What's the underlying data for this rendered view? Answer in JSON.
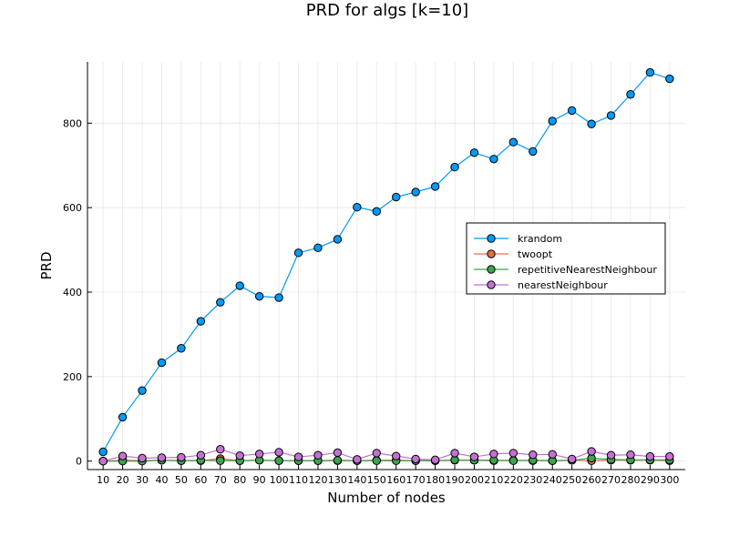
{
  "chart_data": {
    "type": "line",
    "title": "PRD for algs [k=10]",
    "xlabel": "Number of nodes",
    "ylabel": "PRD",
    "x": [
      10,
      20,
      30,
      40,
      50,
      60,
      70,
      80,
      90,
      100,
      110,
      120,
      130,
      140,
      150,
      160,
      170,
      180,
      190,
      200,
      210,
      220,
      230,
      240,
      250,
      260,
      270,
      280,
      290,
      300
    ],
    "yticks": [
      0,
      200,
      400,
      600,
      800
    ],
    "ylim": [
      -20,
      945
    ],
    "xlim": [
      2,
      308
    ],
    "grid": true,
    "legend_position": "right",
    "series": [
      {
        "name": "krandom",
        "color": "#009af9",
        "values": [
          22,
          104,
          167,
          233,
          267,
          331,
          376,
          415,
          390,
          387,
          493,
          505,
          525,
          601,
          591,
          625,
          637,
          650,
          696,
          730,
          715,
          755,
          733,
          805,
          830,
          798,
          818,
          868,
          920,
          905
        ]
      },
      {
        "name": "twoopt",
        "color": "#e26f46",
        "values": [
          0,
          2,
          1,
          2,
          1,
          1,
          6,
          1,
          2,
          1,
          1,
          1,
          1,
          1,
          2,
          2,
          1,
          1,
          2,
          2,
          1,
          2,
          1,
          1,
          2,
          1,
          2,
          2,
          2,
          1
        ]
      },
      {
        "name": "repetitiveNearestNeighbour",
        "color": "#3da44d",
        "values": [
          0,
          0,
          0,
          2,
          1,
          2,
          1,
          1,
          2,
          1,
          1,
          1,
          2,
          1,
          1,
          1,
          1,
          1,
          3,
          2,
          2,
          1,
          2,
          1,
          2,
          7,
          4,
          3,
          3,
          3
        ]
      },
      {
        "name": "nearestNeighbour",
        "color": "#c271d2",
        "values": [
          0,
          12,
          7,
          8,
          9,
          14,
          28,
          13,
          17,
          21,
          10,
          14,
          20,
          4,
          19,
          12,
          5,
          3,
          19,
          10,
          17,
          19,
          15,
          16,
          5,
          23,
          14,
          15,
          11,
          11
        ]
      }
    ]
  },
  "legend": {
    "entries": [
      "krandom",
      "twoopt",
      "repetitiveNearestNeighbour",
      "nearestNeighbour"
    ]
  }
}
